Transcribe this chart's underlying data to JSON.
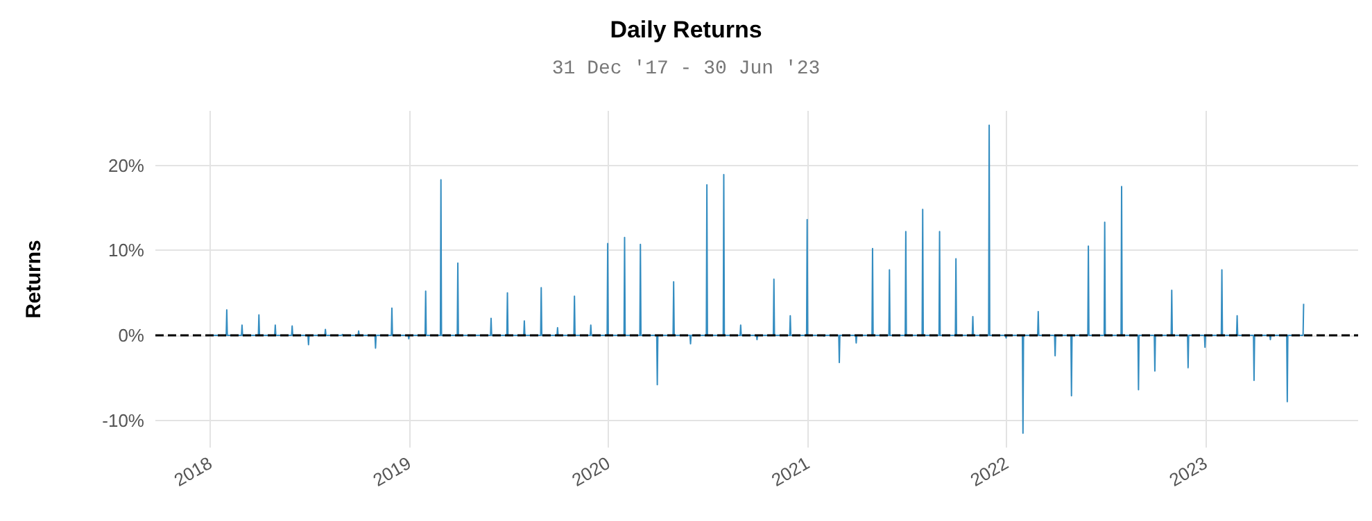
{
  "chart_data": {
    "type": "line",
    "title": "Daily Returns",
    "subtitle": "31 Dec '17 - 30 Jun '23",
    "ylabel": "Returns",
    "color": "#348dc1",
    "line_style": "solid",
    "marker": "none",
    "grid": true,
    "x": [
      "2017-12-31",
      "2018-01-30",
      "2018-01-31",
      "2018-02-01",
      "2018-02-27",
      "2018-02-28",
      "2018-03-01",
      "2018-03-30",
      "2018-03-31",
      "2018-04-01",
      "2018-04-29",
      "2018-04-30",
      "2018-05-01",
      "2018-05-30",
      "2018-05-31",
      "2018-06-01",
      "2018-06-29",
      "2018-06-30",
      "2018-07-01",
      "2018-07-30",
      "2018-07-31",
      "2018-08-01",
      "2018-08-30",
      "2018-08-31",
      "2018-09-01",
      "2018-09-29",
      "2018-09-30",
      "2018-10-01",
      "2018-10-30",
      "2018-10-31",
      "2018-11-01",
      "2018-11-29",
      "2018-11-30",
      "2018-12-01",
      "2018-12-30",
      "2018-12-31",
      "2019-01-01",
      "2019-01-30",
      "2019-01-31",
      "2019-02-01",
      "2019-02-27",
      "2019-02-28",
      "2019-03-01",
      "2019-03-30",
      "2019-03-31",
      "2019-04-01",
      "2019-04-29",
      "2019-04-30",
      "2019-05-01",
      "2019-05-30",
      "2019-05-31",
      "2019-06-01",
      "2019-06-29",
      "2019-06-30",
      "2019-07-01",
      "2019-07-30",
      "2019-07-31",
      "2019-08-01",
      "2019-08-30",
      "2019-08-31",
      "2019-09-01",
      "2019-09-29",
      "2019-09-30",
      "2019-10-01",
      "2019-10-30",
      "2019-10-31",
      "2019-11-01",
      "2019-11-29",
      "2019-11-30",
      "2019-12-01",
      "2019-12-30",
      "2019-12-31",
      "2020-01-01",
      "2020-01-30",
      "2020-01-31",
      "2020-02-01",
      "2020-02-28",
      "2020-02-29",
      "2020-03-01",
      "2020-03-30",
      "2020-03-31",
      "2020-04-01",
      "2020-04-29",
      "2020-04-30",
      "2020-05-01",
      "2020-05-30",
      "2020-05-31",
      "2020-06-01",
      "2020-06-29",
      "2020-06-30",
      "2020-07-01",
      "2020-07-30",
      "2020-07-31",
      "2020-08-01",
      "2020-08-30",
      "2020-08-31",
      "2020-09-01",
      "2020-09-29",
      "2020-09-30",
      "2020-10-01",
      "2020-10-30",
      "2020-10-31",
      "2020-11-01",
      "2020-11-29",
      "2020-11-30",
      "2020-12-01",
      "2020-12-30",
      "2020-12-31",
      "2021-01-01",
      "2021-01-30",
      "2021-01-31",
      "2021-02-01",
      "2021-02-27",
      "2021-02-28",
      "2021-03-01",
      "2021-03-30",
      "2021-03-31",
      "2021-04-01",
      "2021-04-29",
      "2021-04-30",
      "2021-05-01",
      "2021-05-30",
      "2021-05-31",
      "2021-06-01",
      "2021-06-29",
      "2021-06-30",
      "2021-07-01",
      "2021-07-30",
      "2021-07-31",
      "2021-08-01",
      "2021-08-30",
      "2021-08-31",
      "2021-09-01",
      "2021-09-29",
      "2021-09-30",
      "2021-10-01",
      "2021-10-30",
      "2021-10-31",
      "2021-11-01",
      "2021-11-29",
      "2021-11-30",
      "2021-12-01",
      "2021-12-30",
      "2021-12-31",
      "2022-01-01",
      "2022-01-30",
      "2022-01-31",
      "2022-02-01",
      "2022-02-27",
      "2022-02-28",
      "2022-03-01",
      "2022-03-30",
      "2022-03-31",
      "2022-04-01",
      "2022-04-29",
      "2022-04-30",
      "2022-05-01",
      "2022-05-30",
      "2022-05-31",
      "2022-06-01",
      "2022-06-29",
      "2022-06-30",
      "2022-07-01",
      "2022-07-30",
      "2022-07-31",
      "2022-08-01",
      "2022-08-30",
      "2022-08-31",
      "2022-09-01",
      "2022-09-29",
      "2022-09-30",
      "2022-10-01",
      "2022-10-30",
      "2022-10-31",
      "2022-11-01",
      "2022-11-29",
      "2022-11-30",
      "2022-12-01",
      "2022-12-30",
      "2022-12-31",
      "2023-01-01",
      "2023-01-30",
      "2023-01-31",
      "2023-02-01",
      "2023-02-27",
      "2023-02-28",
      "2023-03-01",
      "2023-03-30",
      "2023-03-31",
      "2023-04-01",
      "2023-04-29",
      "2023-04-30",
      "2023-05-01",
      "2023-05-30",
      "2023-05-31",
      "2023-06-01",
      "2023-06-29",
      "2023-06-30"
    ],
    "values": [
      0,
      0,
      3.0,
      0,
      0,
      1.2,
      0,
      0,
      2.4,
      0,
      0,
      1.2,
      0,
      0,
      1.1,
      0,
      0,
      -1.1,
      0,
      0,
      0.7,
      0,
      0,
      0.1,
      0,
      0,
      0.5,
      0,
      0,
      -1.5,
      0,
      0,
      3.2,
      0,
      0,
      -0.4,
      0,
      0,
      5.2,
      0,
      0,
      18.3,
      0,
      0,
      8.5,
      0,
      0,
      0,
      0,
      0,
      2.0,
      0,
      0,
      5.0,
      0,
      0,
      1.7,
      0,
      0,
      5.6,
      0,
      0,
      0.9,
      0,
      0,
      4.6,
      0,
      0,
      1.2,
      0,
      0,
      10.8,
      0,
      0,
      11.5,
      0,
      0,
      10.7,
      0,
      0,
      -5.8,
      0,
      0,
      6.3,
      0,
      0,
      -1.0,
      0,
      0,
      17.7,
      0,
      0,
      18.9,
      0,
      0,
      1.2,
      0,
      0,
      -0.5,
      0,
      0,
      6.6,
      0,
      0,
      2.3,
      0,
      0,
      13.6,
      0,
      0,
      -0.1,
      0,
      0,
      -3.2,
      0,
      0,
      -0.9,
      0,
      0,
      10.2,
      0,
      0,
      7.7,
      0,
      0,
      12.2,
      0,
      0,
      14.8,
      0,
      0,
      12.2,
      0,
      0,
      9.0,
      0,
      0,
      2.2,
      0,
      0,
      24.7,
      0,
      0,
      -0.3,
      0,
      0,
      -11.5,
      0,
      0,
      2.8,
      0,
      0,
      -2.4,
      0,
      0,
      -7.1,
      0,
      0,
      10.5,
      0,
      0,
      13.3,
      0,
      0,
      17.5,
      0,
      0,
      -6.4,
      0,
      0,
      -4.2,
      0,
      0,
      5.3,
      0,
      0,
      -3.8,
      0,
      0,
      -1.4,
      0,
      0,
      7.7,
      0,
      0,
      2.3,
      0,
      0,
      -5.3,
      0,
      0,
      -0.5,
      0,
      0,
      -7.8,
      0,
      0,
      3.7
    ],
    "xlim": [
      "2017-09-22",
      "2023-10-08"
    ],
    "xticks": [
      {
        "value": "2018-01-01",
        "label": "2018"
      },
      {
        "value": "2019-01-01",
        "label": "2019"
      },
      {
        "value": "2020-01-01",
        "label": "2020"
      },
      {
        "value": "2021-01-01",
        "label": "2021"
      },
      {
        "value": "2022-01-01",
        "label": "2022"
      },
      {
        "value": "2023-01-01",
        "label": "2023"
      }
    ],
    "ylim": [
      -13.2,
      26.4
    ],
    "yticks": [
      {
        "value": -10,
        "label": "-10%"
      },
      {
        "value": 0,
        "label": "0%"
      },
      {
        "value": 10,
        "label": "10%"
      },
      {
        "value": 20,
        "label": "20%"
      }
    ],
    "ref_lines": [
      {
        "axis": "y",
        "value": 0,
        "color": "#000000",
        "line_style": "dashed"
      }
    ]
  }
}
